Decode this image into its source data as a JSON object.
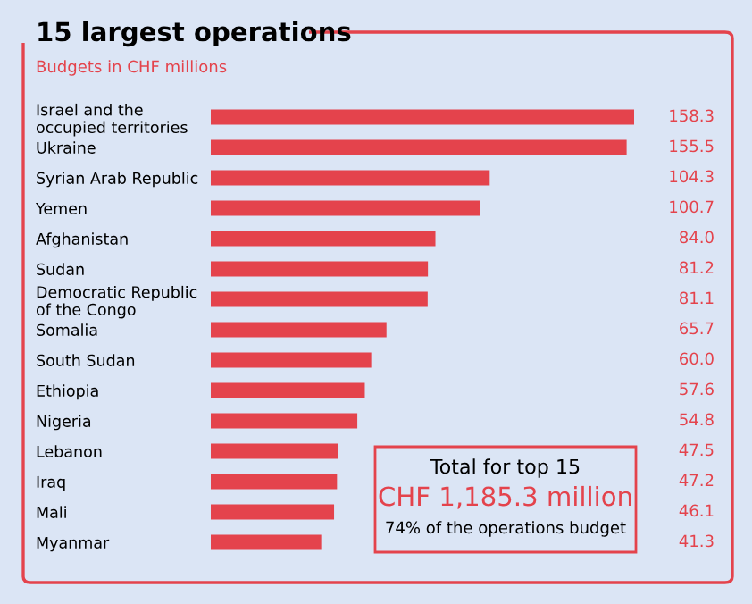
{
  "chart_data": {
    "type": "bar",
    "orientation": "horizontal",
    "title": "15 largest operations",
    "subtitle": "Budgets in CHF millions",
    "categories": [
      "Israel and the\noccupied territories",
      "Ukraine",
      "Syrian Arab Republic",
      "Yemen",
      "Afghanistan",
      "Sudan",
      "Democratic Republic\nof the Congo",
      "Somalia",
      "South Sudan",
      "Ethiopia",
      "Nigeria",
      "Lebanon",
      "Iraq",
      "Mali",
      "Myanmar"
    ],
    "values": [
      158.3,
      155.5,
      104.3,
      100.7,
      84.0,
      81.2,
      81.1,
      65.7,
      60.0,
      57.6,
      54.8,
      47.5,
      47.2,
      46.1,
      41.3
    ],
    "value_labels": [
      "158.3",
      "155.5",
      "104.3",
      "100.7",
      "84.0",
      "81.2",
      "81.1",
      "65.7",
      "60.0",
      "57.6",
      "54.8",
      "47.5",
      "47.2",
      "46.1",
      "41.3"
    ],
    "color": "#e4434c",
    "annotations": [
      "Total for top 15",
      "CHF 1,185.3 million",
      "74% of the operations budget"
    ],
    "grid": false,
    "legend": false
  }
}
